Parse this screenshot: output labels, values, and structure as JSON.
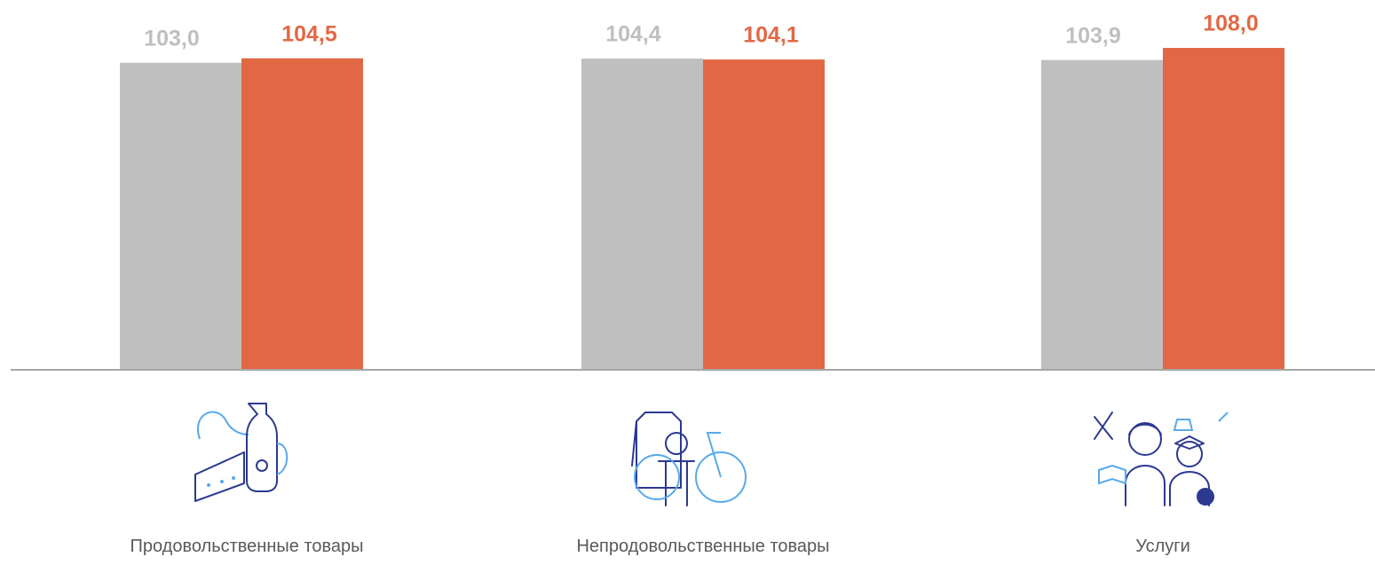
{
  "chart_data": {
    "type": "bar",
    "categories": [
      "Продовольственные товары",
      "Непродовольственные товары",
      "Услуги"
    ],
    "series": [
      {
        "color": "#bfbfbf",
        "values": [
          103.0,
          104.4,
          103.9
        ],
        "value_labels": [
          "103,0",
          "104,4",
          "103,9"
        ]
      },
      {
        "color": "#e26845",
        "values": [
          104.5,
          104.1,
          108.0
        ],
        "value_labels": [
          "104,5",
          "104,1",
          "108,0"
        ]
      }
    ]
  }
}
